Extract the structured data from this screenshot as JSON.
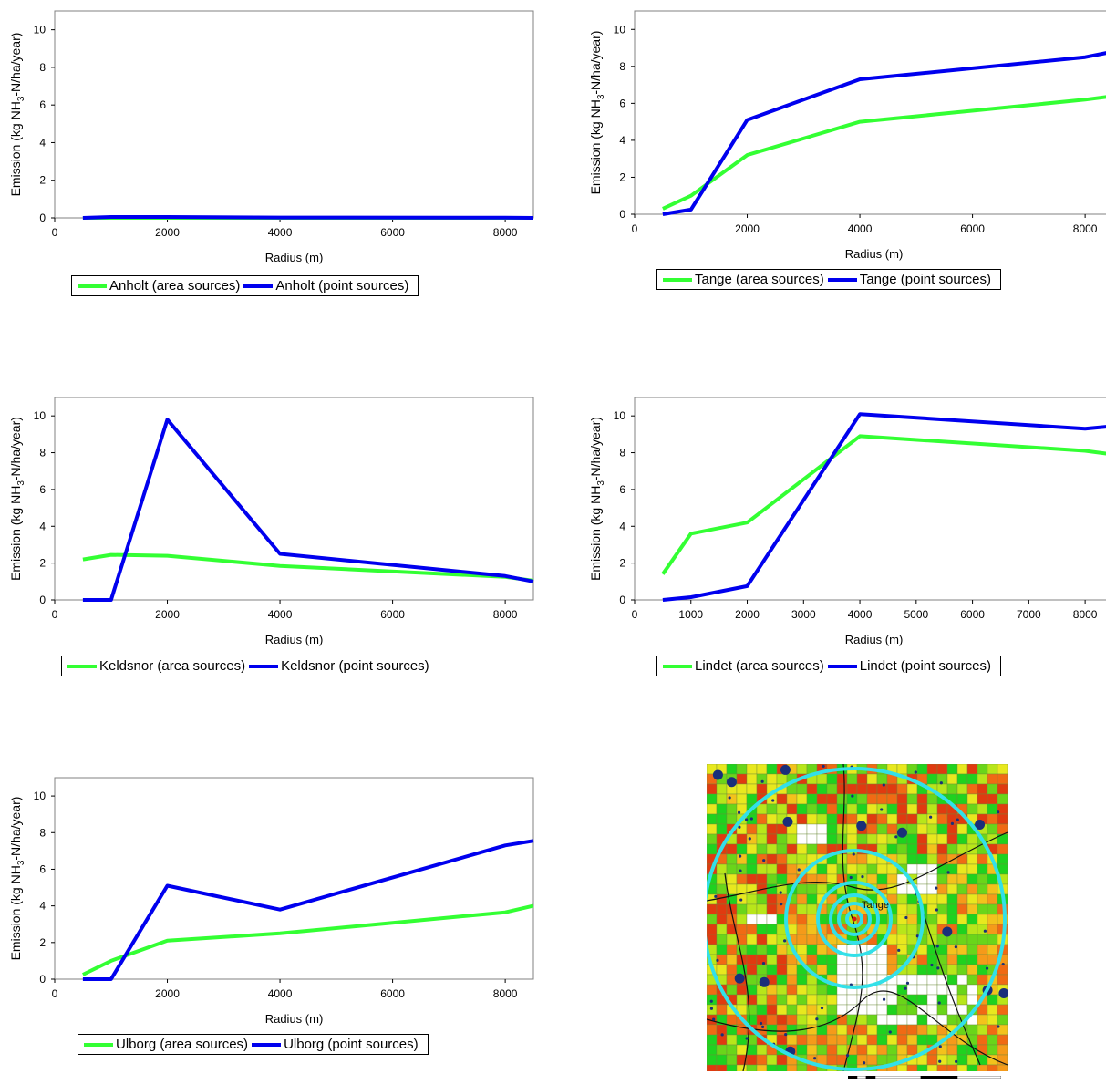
{
  "chart_data": [
    {
      "type": "line",
      "id": "anholt",
      "xlabel": "Radius (m)",
      "ylabel": "Emission (kg NH3-N/ha/year)",
      "xlim": [
        0,
        8500
      ],
      "ylim": [
        0,
        11
      ],
      "xticks": [
        0,
        2000,
        4000,
        6000,
        8000
      ],
      "yticks": [
        0,
        2,
        4,
        6,
        8,
        10
      ],
      "series": [
        {
          "name": "Anholt (area sources)",
          "color": "#33ff33",
          "x": [
            500,
            1000,
            2000,
            4000,
            8000,
            8500
          ],
          "y": [
            0.0,
            0.0,
            0.0,
            0.0,
            0.0,
            0.0
          ]
        },
        {
          "name": "Anholt (point sources)",
          "color": "#0000ee",
          "x": [
            500,
            1000,
            2000,
            4000,
            8000,
            8500
          ],
          "y": [
            0.0,
            0.05,
            0.05,
            0.02,
            0.01,
            0.0
          ]
        }
      ]
    },
    {
      "type": "line",
      "id": "tange",
      "xlabel": "Radius (m)",
      "ylabel": "Emission (kg NH3-N/ha/year)",
      "xlim": [
        0,
        8500
      ],
      "ylim": [
        0,
        11
      ],
      "xticks": [
        0,
        2000,
        4000,
        6000,
        8000
      ],
      "yticks": [
        0,
        2,
        4,
        6,
        8,
        10
      ],
      "series": [
        {
          "name": "Tange (area sources)",
          "color": "#33ff33",
          "x": [
            500,
            1000,
            2000,
            4000,
            8000,
            8500
          ],
          "y": [
            0.3,
            1.0,
            3.2,
            5.0,
            6.2,
            6.4
          ]
        },
        {
          "name": "Tange (point sources)",
          "color": "#0000ee",
          "x": [
            500,
            1000,
            2000,
            4000,
            8000,
            8500
          ],
          "y": [
            0.0,
            0.25,
            5.1,
            7.3,
            8.5,
            8.8
          ]
        }
      ]
    },
    {
      "type": "line",
      "id": "keldsnor",
      "xlabel": "Radius (m)",
      "ylabel": "Emission (kg NH3-N/ha/year)",
      "xlim": [
        0,
        8500
      ],
      "ylim": [
        0,
        11
      ],
      "xticks": [
        0,
        2000,
        4000,
        6000,
        8000
      ],
      "yticks": [
        0,
        2,
        4,
        6,
        8,
        10
      ],
      "series": [
        {
          "name": "Keldsnor (area sources)",
          "color": "#33ff33",
          "x": [
            500,
            1000,
            2000,
            4000,
            8000,
            8500
          ],
          "y": [
            2.2,
            2.45,
            2.4,
            1.85,
            1.25,
            1.05
          ]
        },
        {
          "name": "Keldsnor (point sources)",
          "color": "#0000ee",
          "x": [
            500,
            1000,
            2000,
            4000,
            8000,
            8500
          ],
          "y": [
            0.0,
            0.0,
            9.8,
            2.5,
            1.3,
            1.0
          ]
        }
      ]
    },
    {
      "type": "line",
      "id": "lindet",
      "xlabel": "Radius (m)",
      "ylabel": "Emission (kg NH3-N/ha/year)",
      "xlim": [
        0,
        8500
      ],
      "ylim": [
        0,
        11
      ],
      "xticks": [
        0,
        1000,
        2000,
        3000,
        4000,
        5000,
        6000,
        7000,
        8000
      ],
      "yticks": [
        0,
        2,
        4,
        6,
        8,
        10
      ],
      "series": [
        {
          "name": "Lindet (area sources)",
          "color": "#33ff33",
          "x": [
            500,
            1000,
            2000,
            4000,
            8000,
            8500
          ],
          "y": [
            1.4,
            3.6,
            4.2,
            8.9,
            8.1,
            7.9
          ]
        },
        {
          "name": "Lindet (point sources)",
          "color": "#0000ee",
          "x": [
            500,
            1000,
            2000,
            4000,
            8000,
            8500
          ],
          "y": [
            0.0,
            0.15,
            0.75,
            10.1,
            9.3,
            9.45
          ]
        }
      ]
    },
    {
      "type": "line",
      "id": "ulborg",
      "xlabel": "Radius (m)",
      "ylabel": "Emission (kg NH3-N/ha/year)",
      "xlim": [
        0,
        8500
      ],
      "ylim": [
        0,
        11
      ],
      "xticks": [
        0,
        2000,
        4000,
        6000,
        8000
      ],
      "yticks": [
        0,
        2,
        4,
        6,
        8,
        10
      ],
      "series": [
        {
          "name": "Ulborg (area sources)",
          "color": "#33ff33",
          "x": [
            500,
            1000,
            2000,
            4000,
            8000,
            8500
          ],
          "y": [
            0.25,
            1.0,
            2.1,
            2.5,
            3.65,
            4.0
          ]
        },
        {
          "name": "Ulborg (point sources)",
          "color": "#0000ee",
          "x": [
            500,
            1000,
            2000,
            4000,
            8000,
            8500
          ],
          "y": [
            0.0,
            0.0,
            5.1,
            3.8,
            7.3,
            7.55
          ]
        }
      ]
    }
  ],
  "map": {
    "label": "Tange",
    "ring_color": "#33e0e8",
    "scale_ticks": [
      "0",
      "1",
      "2",
      "4",
      "6",
      "8"
    ]
  }
}
